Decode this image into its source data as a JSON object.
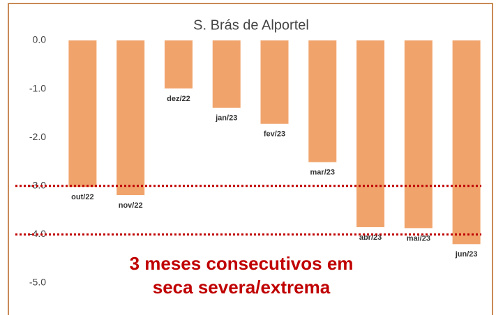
{
  "chart_data": {
    "type": "bar",
    "title": "S. Brás de Alportel",
    "categories": [
      "out/22",
      "nov/22",
      "dez/22",
      "jan/23",
      "fev/23",
      "mar/23",
      "abr/23",
      "mai/23",
      "jun/23"
    ],
    "values": [
      -3.02,
      -3.19,
      -0.99,
      -1.39,
      -1.72,
      -2.51,
      -3.85,
      -3.87,
      -4.2
    ],
    "color": "#f0a46c",
    "ylim": [
      -5,
      0
    ],
    "yticks": [
      {
        "value": 0,
        "label": "0.0"
      },
      {
        "value": -1,
        "label": "-1.0"
      },
      {
        "value": -2,
        "label": "-2.0"
      },
      {
        "value": -3,
        "label": "-3.0"
      },
      {
        "value": -4,
        "label": "-4.0"
      },
      {
        "value": -5,
        "label": "-5.0"
      }
    ],
    "grid": false,
    "reference_lines": [
      -3,
      -4
    ],
    "reference_color": "#c00000",
    "annotation": [
      "3 meses consecutivos em",
      "seca severa/extrema"
    ],
    "annotation_color": "#c00000"
  }
}
